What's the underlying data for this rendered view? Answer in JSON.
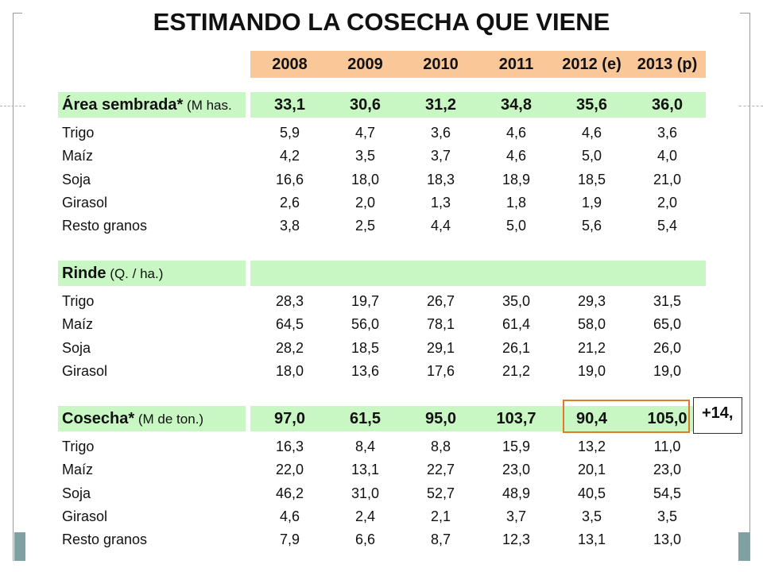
{
  "title": "ESTIMANDO LA COSECHA QUE VIENE",
  "years": [
    "2008",
    "2009",
    "2010",
    "2011",
    "2012 (e)",
    "2013 (p)"
  ],
  "sections": [
    {
      "key": "area",
      "title_main": "Área sembrada*",
      "title_sub": " (M has.",
      "totals": [
        "33,1",
        "30,6",
        "31,2",
        "34,8",
        "35,6",
        "36,0"
      ],
      "rows": [
        {
          "label": "Trigo",
          "values": [
            "5,9",
            "4,7",
            "3,6",
            "4,6",
            "4,6",
            "3,6"
          ]
        },
        {
          "label": "Maíz",
          "values": [
            "4,2",
            "3,5",
            "3,7",
            "4,6",
            "5,0",
            "4,0"
          ]
        },
        {
          "label": "Soja",
          "values": [
            "16,6",
            "18,0",
            "18,3",
            "18,9",
            "18,5",
            "21,0"
          ]
        },
        {
          "label": "Girasol",
          "values": [
            "2,6",
            "2,0",
            "1,3",
            "1,8",
            "1,9",
            "2,0"
          ]
        },
        {
          "label": "Resto granos",
          "values": [
            "3,8",
            "2,5",
            "4,4",
            "5,0",
            "5,6",
            "5,4"
          ]
        }
      ]
    },
    {
      "key": "rinde",
      "title_main": "Rinde",
      "title_sub": " (Q. / ha.)",
      "totals": [
        "",
        "",
        "",
        "",
        "",
        ""
      ],
      "rows": [
        {
          "label": "Trigo",
          "values": [
            "28,3",
            "19,7",
            "26,7",
            "35,0",
            "29,3",
            "31,5"
          ]
        },
        {
          "label": "Maíz",
          "values": [
            "64,5",
            "56,0",
            "78,1",
            "61,4",
            "58,0",
            "65,0"
          ]
        },
        {
          "label": "Soja",
          "values": [
            "28,2",
            "18,5",
            "29,1",
            "26,1",
            "21,2",
            "26,0"
          ]
        },
        {
          "label": "Girasol",
          "values": [
            "18,0",
            "13,6",
            "17,6",
            "21,2",
            "19,0",
            "19,0"
          ]
        }
      ]
    },
    {
      "key": "cosecha",
      "title_main": "Cosecha*",
      "title_sub": " (M de ton.)",
      "totals": [
        "97,0",
        "61,5",
        "95,0",
        "103,7",
        "90,4",
        "105,0"
      ],
      "rows": [
        {
          "label": "Trigo",
          "values": [
            "16,3",
            "8,4",
            "8,8",
            "15,9",
            "13,2",
            "11,0"
          ]
        },
        {
          "label": "Maíz",
          "values": [
            "22,0",
            "13,1",
            "22,7",
            "23,0",
            "20,1",
            "23,0"
          ]
        },
        {
          "label": "Soja",
          "values": [
            "46,2",
            "31,0",
            "52,7",
            "48,9",
            "40,5",
            "54,5"
          ]
        },
        {
          "label": "Girasol",
          "values": [
            "4,6",
            "2,4",
            "2,1",
            "3,7",
            "3,5",
            "3,5"
          ]
        },
        {
          "label": "Resto granos",
          "values": [
            "7,9",
            "6,6",
            "8,7",
            "12,3",
            "13,1",
            "13,0"
          ]
        }
      ]
    }
  ],
  "callout": "+14,",
  "colors": {
    "header_band": "#fac898",
    "section_band": "#c9f7c4",
    "highlight": "#e07b2b",
    "frame_accent": "#7fa1a1"
  }
}
